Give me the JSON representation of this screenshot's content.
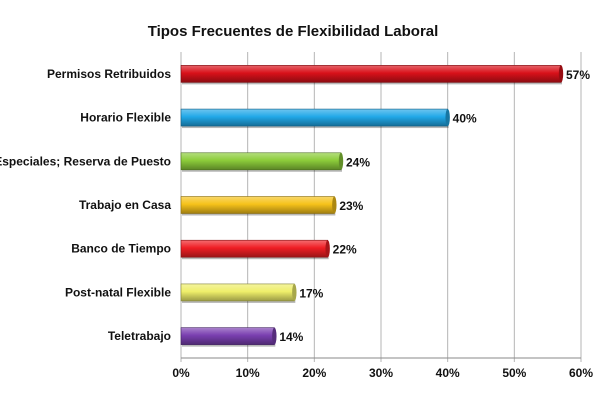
{
  "chart_data": {
    "type": "bar",
    "orientation": "horizontal",
    "title": "Tipos Frecuentes de Flexibilidad Laboral",
    "xlabel": "",
    "ylabel": "",
    "xlim": [
      0,
      60
    ],
    "grid": true,
    "legend": "none",
    "categories": [
      "Permisos Retribuidos",
      "Horario Flexible",
      "Especiales; Reserva de Puesto",
      "Trabajo en Casa",
      "Banco de Tiempo",
      "Post-natal Flexible",
      "Teletrabajo"
    ],
    "values": [
      57,
      40,
      24,
      23,
      22,
      17,
      14
    ],
    "value_labels": [
      "57%",
      "40%",
      "24%",
      "23%",
      "22%",
      "17%",
      "14%"
    ],
    "x_ticks": [
      0,
      10,
      20,
      30,
      40,
      50,
      60
    ],
    "x_tick_labels": [
      "0%",
      "10%",
      "20%",
      "30%",
      "40%",
      "50%",
      "60%"
    ],
    "bar_colors": [
      "#d9111a",
      "#21a8e8",
      "#8ccc3a",
      "#f6c21a",
      "#ef1e24",
      "#eeee6a",
      "#7a3fb0"
    ]
  }
}
